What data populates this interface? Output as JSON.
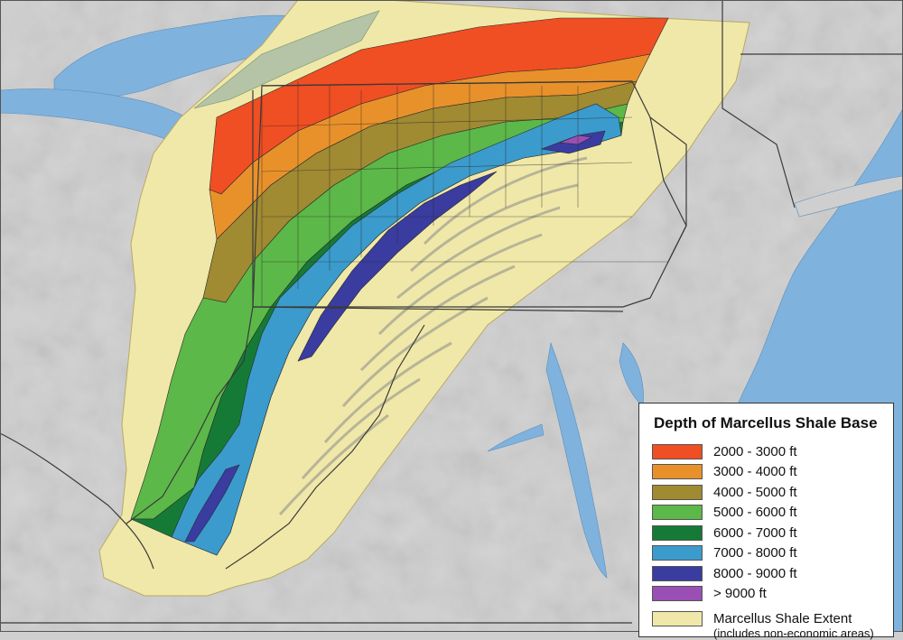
{
  "legend": {
    "title": "Depth of Marcellus Shale Base",
    "items": [
      {
        "label": "2000 - 3000 ft",
        "color": "#f04e23"
      },
      {
        "label": "3000 - 4000 ft",
        "color": "#e8912a"
      },
      {
        "label": "4000 - 5000 ft",
        "color": "#a08a32"
      },
      {
        "label": "5000 - 6000 ft",
        "color": "#5cb848"
      },
      {
        "label": "6000 - 7000 ft",
        "color": "#157a36"
      },
      {
        "label": "7000 - 8000 ft",
        "color": "#3b9bcc"
      },
      {
        "label": "8000 - 9000 ft",
        "color": "#3a3ca0"
      },
      {
        "label": "> 9000 ft",
        "color": "#9a4fb5"
      }
    ],
    "extent": {
      "label": "Marcellus Shale Extent",
      "note": "(includes non-economic areas)",
      "color": "#f0e8a8"
    }
  },
  "colors": {
    "land": "#cfcfcf",
    "water": "#7fb2dc",
    "boundary": "#3a3a3a"
  }
}
